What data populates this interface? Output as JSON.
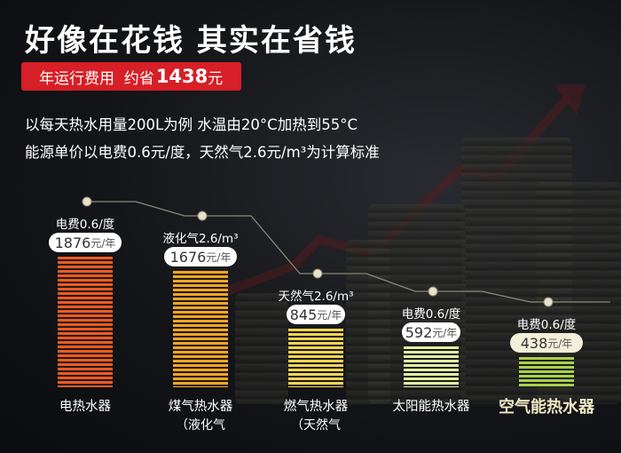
{
  "headline": "好像在花钱 其实在省钱",
  "banner": {
    "prefix": "年运行费用  约省",
    "amount": "1438",
    "suffix": "元"
  },
  "intro": {
    "line1": "以每天热水用量200L为例  水温由20°C加热到55°C",
    "line2": "能源单价以电费0.6元/度，天然气2.6元/m³为计算标准"
  },
  "colors": {
    "banner_red": "#d61f26",
    "electric": "#f05a1e",
    "gas_lpg": "#f6a521",
    "gas_natural": "#f5d454",
    "solar": "#e2f1a2",
    "air": "#a9d14a"
  },
  "chart_data": {
    "type": "bar",
    "categories": [
      "电热水器",
      "煤气热水器",
      "燃气热水器",
      "太阳能热水器",
      "空气能热水器"
    ],
    "subcategories": [
      "",
      "（液化气",
      "（天然气",
      "",
      ""
    ],
    "prices": [
      "电费0.6/度",
      "液化气2.6/m³",
      "天然气2.6/m³",
      "电费0.6/度",
      "电费0.6/度"
    ],
    "values": [
      1876,
      1676,
      845,
      592,
      438
    ],
    "value_labels": [
      "1876",
      "1676",
      "845",
      "592",
      "438"
    ],
    "unit": "元/年",
    "highlight_index": 4
  }
}
